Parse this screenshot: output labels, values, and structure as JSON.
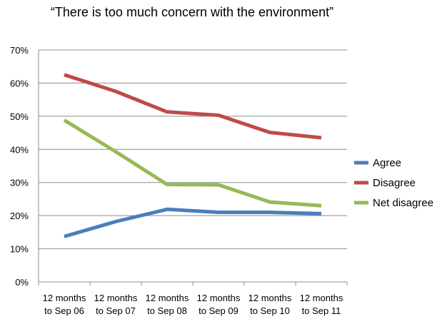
{
  "chart_data": {
    "type": "line",
    "title": "“There is too much concern with the environment”",
    "xlabel": "",
    "ylabel": "",
    "categories": [
      [
        "12 months",
        "to Sep 06"
      ],
      [
        "12 months",
        "to Sep 07"
      ],
      [
        "12 months",
        "to Sep 08"
      ],
      [
        "12 months",
        "to Sep 09"
      ],
      [
        "12 months",
        "to Sep 10"
      ],
      [
        "12 months",
        "to Sep 11"
      ]
    ],
    "y_ticks": [
      "0%",
      "10%",
      "20%",
      "30%",
      "40%",
      "50%",
      "60%",
      "70%"
    ],
    "ylim": [
      0,
      70
    ],
    "y_unit": "%",
    "grid": true,
    "legend_position": "right",
    "series": [
      {
        "name": "Agree",
        "color": "#4a7ebb",
        "values": [
          13.7,
          18.2,
          21.9,
          21.0,
          21.0,
          20.6
        ]
      },
      {
        "name": "Disagree",
        "color": "#be4b48",
        "values": [
          62.5,
          57.5,
          51.3,
          50.3,
          45.1,
          43.5
        ]
      },
      {
        "name": "Net disagree",
        "color": "#98b954",
        "values": [
          48.8,
          39.3,
          29.4,
          29.3,
          24.1,
          23.0
        ]
      }
    ]
  }
}
